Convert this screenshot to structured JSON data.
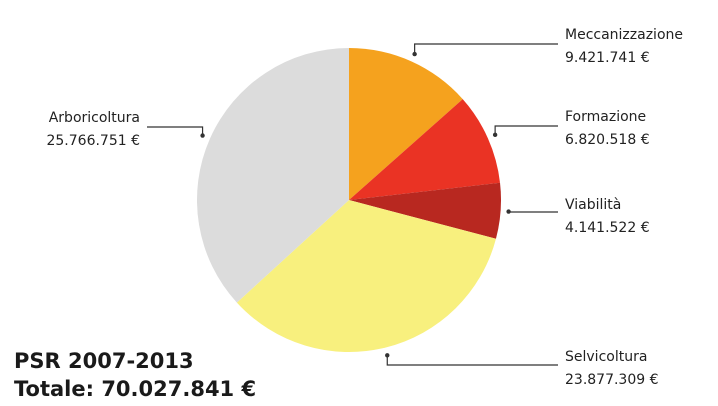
{
  "chart_data": {
    "type": "pie",
    "title": "PSR 2007-2013",
    "subtitle": "Totale: 70.027.841 €",
    "categories": [
      "Meccanizzazione",
      "Formazione",
      "Viabilità",
      "Selvicoltura",
      "Arboricoltura"
    ],
    "values": [
      9421741,
      6820518,
      4141522,
      23877309,
      25766751
    ],
    "value_labels": [
      "9.421.741 €",
      "6.820.518 €",
      "4.141.522 €",
      "23.877.309 €",
      "25.766.751 €"
    ],
    "colors": [
      "#f5a21e",
      "#ea3324",
      "#b82820",
      "#f8f07e",
      "#dcdcdc"
    ]
  }
}
